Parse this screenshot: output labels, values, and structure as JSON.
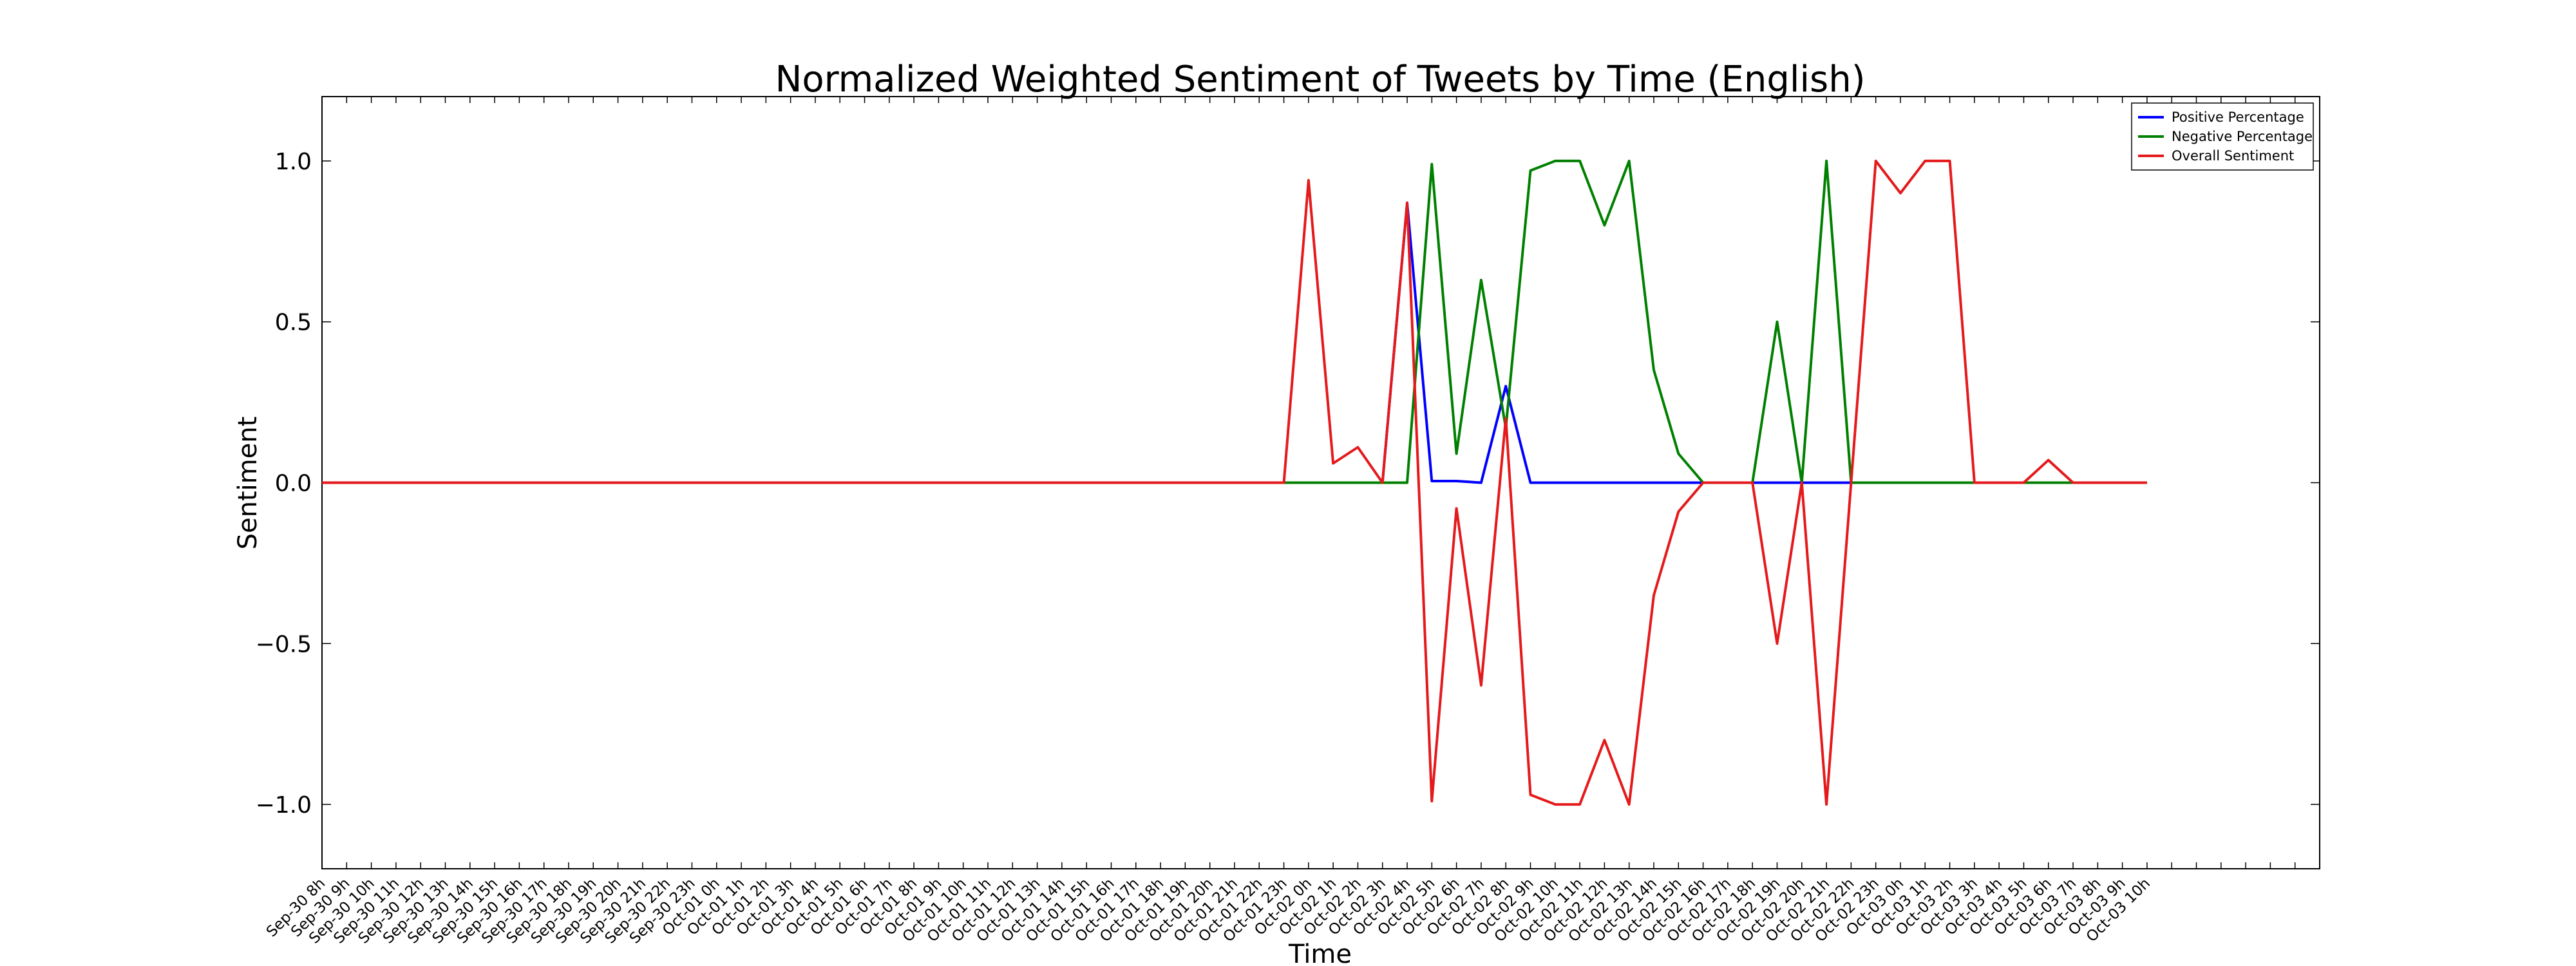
{
  "chart_data": {
    "type": "line",
    "title": "Normalized Weighted Sentiment of Tweets by Time (English)",
    "xlabel": "Time",
    "ylabel": "Sentiment",
    "ylim": [
      -1.2,
      1.2
    ],
    "yticks": [
      1.0,
      0.5,
      0.0,
      -0.5,
      -1.0
    ],
    "ytick_labels": [
      "1.0",
      "0.5",
      "0.0",
      "−0.5",
      "−1.0"
    ],
    "legend_position": "top-right",
    "grid": false,
    "x_categories": [
      "Sep-30 8h",
      "Sep-30 9h",
      "Sep-30 10h",
      "Sep-30 11h",
      "Sep-30 12h",
      "Sep-30 13h",
      "Sep-30 14h",
      "Sep-30 15h",
      "Sep-30 16h",
      "Sep-30 17h",
      "Sep-30 18h",
      "Sep-30 19h",
      "Sep-30 20h",
      "Sep-30 21h",
      "Sep-30 22h",
      "Sep-30 23h",
      "Oct-01 0h",
      "Oct-01 1h",
      "Oct-01 2h",
      "Oct-01 3h",
      "Oct-01 4h",
      "Oct-01 5h",
      "Oct-01 6h",
      "Oct-01 7h",
      "Oct-01 8h",
      "Oct-01 9h",
      "Oct-01 10h",
      "Oct-01 11h",
      "Oct-01 12h",
      "Oct-01 13h",
      "Oct-01 14h",
      "Oct-01 15h",
      "Oct-01 16h",
      "Oct-01 17h",
      "Oct-01 18h",
      "Oct-01 19h",
      "Oct-01 20h",
      "Oct-01 21h",
      "Oct-01 22h",
      "Oct-01 23h",
      "Oct-02 0h",
      "Oct-02 1h",
      "Oct-02 2h",
      "Oct-02 3h",
      "Oct-02 4h",
      "Oct-02 5h",
      "Oct-02 6h",
      "Oct-02 7h",
      "Oct-02 8h",
      "Oct-02 9h",
      "Oct-02 10h",
      "Oct-02 11h",
      "Oct-02 12h",
      "Oct-02 13h",
      "Oct-02 14h",
      "Oct-02 15h",
      "Oct-02 16h",
      "Oct-02 17h",
      "Oct-02 18h",
      "Oct-02 19h",
      "Oct-02 20h",
      "Oct-02 21h",
      "Oct-02 22h",
      "Oct-02 23h",
      "Oct-03 0h",
      "Oct-03 1h",
      "Oct-03 2h",
      "Oct-03 3h",
      "Oct-03 4h",
      "Oct-03 5h",
      "Oct-03 6h",
      "Oct-03 7h",
      "Oct-03 8h",
      "Oct-03 9h",
      "Oct-03 10h"
    ],
    "x_extra_slots": 6,
    "series": [
      {
        "name": "Positive Percentage",
        "color": "#0000ff",
        "values": [
          0,
          0,
          0,
          0,
          0,
          0,
          0,
          0,
          0,
          0,
          0,
          0,
          0,
          0,
          0,
          0,
          0,
          0,
          0,
          0,
          0,
          0,
          0,
          0,
          0,
          0,
          0,
          0,
          0,
          0,
          0,
          0,
          0,
          0,
          0,
          0,
          0,
          0,
          0,
          0,
          0,
          0,
          0,
          0,
          0.87,
          0.005,
          0.005,
          0,
          0.3,
          0,
          0,
          0,
          0,
          0,
          0,
          0,
          0,
          0,
          0,
          0,
          0,
          0,
          0,
          0,
          0,
          0,
          0,
          0,
          0,
          0,
          0,
          0,
          0,
          0,
          0
        ]
      },
      {
        "name": "Negative Percentage",
        "color": "#008000",
        "values": [
          0,
          0,
          0,
          0,
          0,
          0,
          0,
          0,
          0,
          0,
          0,
          0,
          0,
          0,
          0,
          0,
          0,
          0,
          0,
          0,
          0,
          0,
          0,
          0,
          0,
          0,
          0,
          0,
          0,
          0,
          0,
          0,
          0,
          0,
          0,
          0,
          0,
          0,
          0,
          0,
          0,
          0,
          0,
          0,
          0,
          0.99,
          0.09,
          0.63,
          0.17,
          0.97,
          1.0,
          1.0,
          0.8,
          1.0,
          0.35,
          0.09,
          0,
          0,
          0,
          0.5,
          0,
          1.0,
          0,
          0,
          0,
          0,
          0,
          0,
          0,
          0,
          0,
          0,
          0,
          0,
          0
        ]
      },
      {
        "name": "Overall Sentiment",
        "color": "#e41a1c",
        "values": [
          0,
          0,
          0,
          0,
          0,
          0,
          0,
          0,
          0,
          0,
          0,
          0,
          0,
          0,
          0,
          0,
          0,
          0,
          0,
          0,
          0,
          0,
          0,
          0,
          0,
          0,
          0,
          0,
          0,
          0,
          0,
          0,
          0,
          0,
          0,
          0,
          0,
          0,
          0,
          0,
          0.94,
          0.06,
          0.11,
          0,
          0.87,
          -0.99,
          -0.08,
          -0.63,
          0.2,
          -0.97,
          -1.0,
          -1.0,
          -0.8,
          -1.0,
          -0.35,
          -0.09,
          0,
          0,
          0,
          -0.5,
          0,
          -1.0,
          0,
          1.0,
          0.9,
          1.0,
          1.0,
          0,
          0,
          0,
          0.07,
          0,
          0,
          0,
          0
        ]
      }
    ]
  }
}
